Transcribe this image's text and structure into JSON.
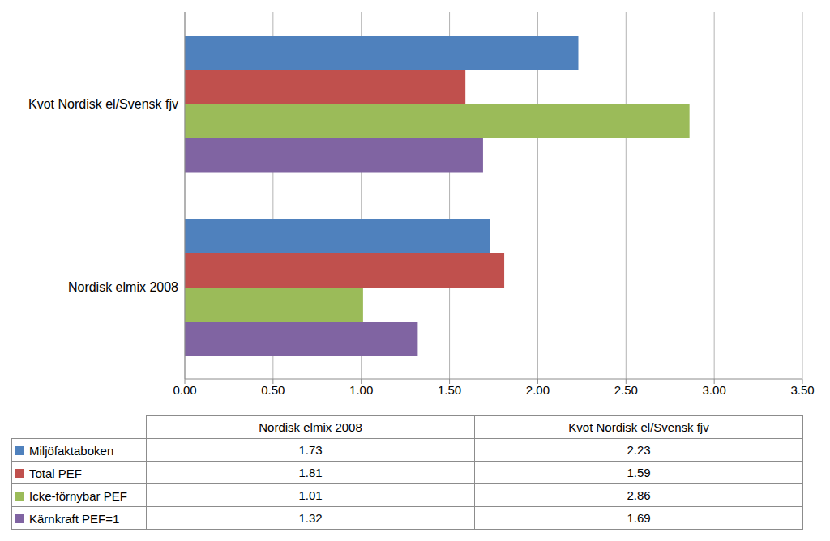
{
  "chart_data": {
    "type": "bar",
    "orientation": "horizontal",
    "categories": [
      "Nordisk elmix 2008",
      "Kvot Nordisk el/Svensk fjv"
    ],
    "series": [
      {
        "name": "Miljöfaktaboken",
        "color": "#4f81bd",
        "values": [
          1.73,
          2.23
        ]
      },
      {
        "name": "Total PEF",
        "color": "#c0504d",
        "values": [
          1.81,
          1.59
        ]
      },
      {
        "name": "Icke-förnybar PEF",
        "color": "#9bbb59",
        "values": [
          1.01,
          2.86
        ]
      },
      {
        "name": "Kärnkraft PEF=1",
        "color": "#8064a2",
        "values": [
          1.32,
          1.69
        ]
      }
    ],
    "xlim": [
      0,
      3.5
    ],
    "xticks": [
      {
        "value": 0,
        "label": "0.00"
      },
      {
        "value": 0.5,
        "label": "0.50"
      },
      {
        "value": 1,
        "label": "1.00"
      },
      {
        "value": 1.5,
        "label": "1.50"
      },
      {
        "value": 2,
        "label": "2.00"
      },
      {
        "value": 2.5,
        "label": "2.50"
      },
      {
        "value": 3,
        "label": "3.00"
      },
      {
        "value": 3.5,
        "label": "3.50"
      }
    ],
    "grid": true
  }
}
